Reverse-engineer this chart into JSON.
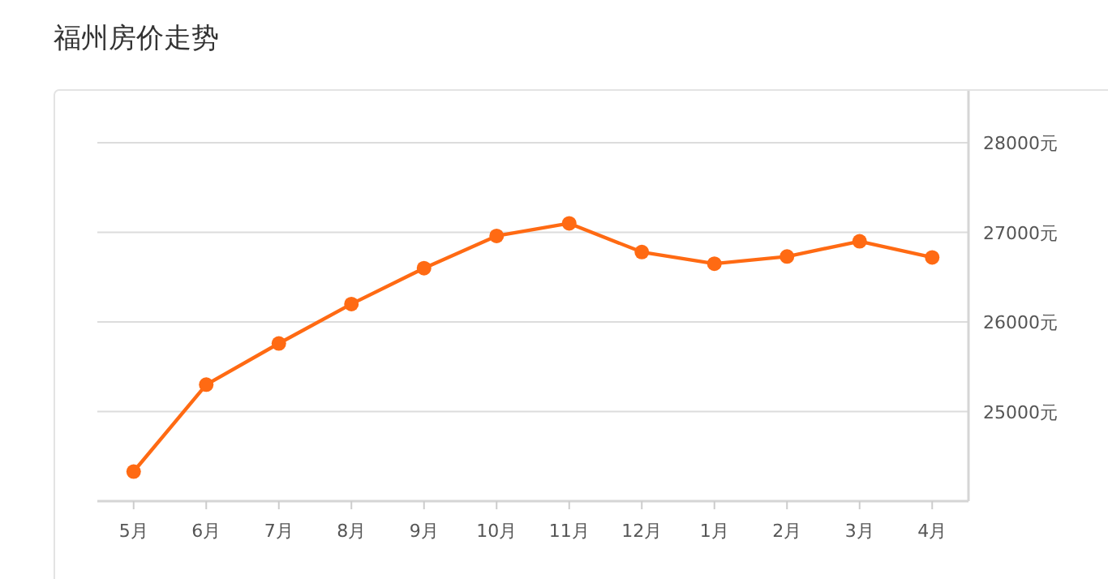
{
  "chart_data": {
    "type": "line",
    "title": "福州房价走势",
    "categories": [
      "5月",
      "6月",
      "7月",
      "8月",
      "9月",
      "10月",
      "11月",
      "12月",
      "1月",
      "2月",
      "3月",
      "4月"
    ],
    "series": [
      {
        "color": "#ff6a13",
        "values": [
          24330,
          25300,
          25760,
          26200,
          26600,
          26960,
          27100,
          26780,
          26650,
          26730,
          26900,
          26720
        ]
      }
    ],
    "ylim": [
      24000,
      28000
    ],
    "yticks": [
      {
        "value": 25000,
        "label": "25000元"
      },
      {
        "value": 26000,
        "label": "26000元"
      },
      {
        "value": 27000,
        "label": "27000元"
      },
      {
        "value": 28000,
        "label": "28000元"
      }
    ],
    "grid": "y",
    "marker": "circle",
    "line_style": "solid"
  }
}
